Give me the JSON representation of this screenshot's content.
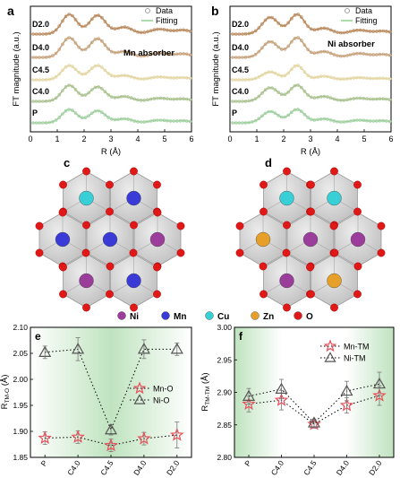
{
  "colors": {
    "D2.0": "#b98a5e",
    "D4.0": "#c6a27c",
    "C4.5": "#e3d6a3",
    "C4.0": "#a9c28f",
    "P": "#9fcf9f",
    "fit_line": "#8fd08f",
    "data_marker": "#8c8c8c",
    "Ni": "#9b3d9b",
    "Mn": "#3a3ad6",
    "Cu": "#38cfd6",
    "Zn": "#e6a02a",
    "O": "#e01818",
    "star": "#e8505b",
    "triangle": "#555555",
    "gradient": "#bfe3bf"
  },
  "chart_data": [
    {
      "id": "a",
      "type": "line",
      "panel_label": "a",
      "xlabel": "R (Å)",
      "ylabel": "FT magnitude (a.u.)",
      "xlim": [
        0,
        6
      ],
      "xticks": [
        "0",
        "1",
        "2",
        "3",
        "4",
        "5",
        "6"
      ],
      "annotation": "Mn absorber",
      "legend": [
        "Data",
        "Fitting"
      ],
      "legend_position": "top-right",
      "series": [
        {
          "name": "D2.0",
          "peaks": [
            {
              "r": 1.45,
              "a": 1.0,
              "w": 0.28
            },
            {
              "r": 2.5,
              "a": 0.95,
              "w": 0.3
            },
            {
              "r": 3.5,
              "a": 0.35,
              "w": 0.3
            },
            {
              "r": 4.8,
              "a": 0.25,
              "w": 0.35
            },
            {
              "r": 5.7,
              "a": 0.2,
              "w": 0.3
            }
          ]
        },
        {
          "name": "D4.0",
          "peaks": [
            {
              "r": 1.45,
              "a": 1.0,
              "w": 0.28
            },
            {
              "r": 2.5,
              "a": 0.95,
              "w": 0.3
            },
            {
              "r": 3.5,
              "a": 0.3,
              "w": 0.3
            },
            {
              "r": 4.8,
              "a": 0.22,
              "w": 0.35
            },
            {
              "r": 5.7,
              "a": 0.18,
              "w": 0.3
            }
          ]
        },
        {
          "name": "C4.5",
          "peaks": [
            {
              "r": 1.45,
              "a": 1.0,
              "w": 0.28
            },
            {
              "r": 2.5,
              "a": 1.0,
              "w": 0.3
            },
            {
              "r": 3.5,
              "a": 0.3,
              "w": 0.3
            },
            {
              "r": 4.8,
              "a": 0.2,
              "w": 0.35
            },
            {
              "r": 5.7,
              "a": 0.15,
              "w": 0.3
            }
          ]
        },
        {
          "name": "C4.0",
          "peaks": [
            {
              "r": 1.45,
              "a": 1.0,
              "w": 0.28
            },
            {
              "r": 2.5,
              "a": 0.9,
              "w": 0.3
            },
            {
              "r": 3.5,
              "a": 0.3,
              "w": 0.3
            },
            {
              "r": 4.8,
              "a": 0.2,
              "w": 0.35
            },
            {
              "r": 5.7,
              "a": 0.15,
              "w": 0.3
            }
          ]
        },
        {
          "name": "P",
          "peaks": [
            {
              "r": 1.45,
              "a": 1.0,
              "w": 0.28
            },
            {
              "r": 2.5,
              "a": 0.9,
              "w": 0.3
            },
            {
              "r": 3.5,
              "a": 0.3,
              "w": 0.3
            },
            {
              "r": 4.8,
              "a": 0.2,
              "w": 0.35
            },
            {
              "r": 5.7,
              "a": 0.15,
              "w": 0.3
            }
          ]
        }
      ]
    },
    {
      "id": "b",
      "type": "line",
      "panel_label": "b",
      "xlabel": "R (Å)",
      "ylabel": "FT magnitude (a.u.)",
      "xlim": [
        0,
        6
      ],
      "xticks": [
        "0",
        "1",
        "2",
        "3",
        "4",
        "5",
        "6"
      ],
      "annotation": "Ni absorber",
      "legend": [
        "Data",
        "Fitting"
      ],
      "legend_position": "top-right",
      "series": [
        {
          "name": "D2.0",
          "peaks": [
            {
              "r": 1.5,
              "a": 0.85,
              "w": 0.3
            },
            {
              "r": 2.5,
              "a": 1.0,
              "w": 0.28
            },
            {
              "r": 3.5,
              "a": 0.3,
              "w": 0.3
            },
            {
              "r": 4.8,
              "a": 0.2,
              "w": 0.35
            },
            {
              "r": 5.7,
              "a": 0.15,
              "w": 0.3
            }
          ]
        },
        {
          "name": "D4.0",
          "peaks": [
            {
              "r": 1.5,
              "a": 0.8,
              "w": 0.3
            },
            {
              "r": 2.5,
              "a": 1.0,
              "w": 0.28
            },
            {
              "r": 3.5,
              "a": 0.3,
              "w": 0.3
            },
            {
              "r": 4.8,
              "a": 0.2,
              "w": 0.35
            },
            {
              "r": 5.7,
              "a": 0.15,
              "w": 0.3
            }
          ]
        },
        {
          "name": "C4.5",
          "peaks": [
            {
              "r": 1.5,
              "a": 0.55,
              "w": 0.3
            },
            {
              "r": 2.5,
              "a": 1.0,
              "w": 0.25
            },
            {
              "r": 3.5,
              "a": 0.25,
              "w": 0.3
            },
            {
              "r": 4.8,
              "a": 0.15,
              "w": 0.35
            },
            {
              "r": 5.7,
              "a": 0.1,
              "w": 0.3
            }
          ]
        },
        {
          "name": "C4.0",
          "peaks": [
            {
              "r": 1.5,
              "a": 0.85,
              "w": 0.3
            },
            {
              "r": 2.5,
              "a": 1.0,
              "w": 0.28
            },
            {
              "r": 3.5,
              "a": 0.3,
              "w": 0.3
            },
            {
              "r": 4.8,
              "a": 0.2,
              "w": 0.35
            },
            {
              "r": 5.7,
              "a": 0.15,
              "w": 0.3
            }
          ]
        },
        {
          "name": "P",
          "peaks": [
            {
              "r": 1.5,
              "a": 0.85,
              "w": 0.3
            },
            {
              "r": 2.5,
              "a": 1.0,
              "w": 0.28
            },
            {
              "r": 3.5,
              "a": 0.3,
              "w": 0.3
            },
            {
              "r": 4.8,
              "a": 0.2,
              "w": 0.35
            },
            {
              "r": 5.7,
              "a": 0.15,
              "w": 0.3
            }
          ]
        }
      ]
    },
    {
      "id": "e",
      "type": "scatter",
      "panel_label": "e",
      "ylabel": "R",
      "ylabel_sub": "TM-O",
      "ylabel_unit": " (Å)",
      "categories": [
        "P",
        "C4.0",
        "C4.5",
        "D4.0",
        "D2.0"
      ],
      "ylim": [
        1.85,
        2.1
      ],
      "yticks": [
        "1.85",
        "1.90",
        "1.95",
        "2.00",
        "2.05",
        "2.10"
      ],
      "legend_position": "middle-right",
      "series": [
        {
          "name": "Mn-O",
          "marker": "star",
          "values": [
            1.887,
            1.889,
            1.873,
            1.886,
            1.893
          ],
          "errors": [
            0.012,
            0.012,
            0.012,
            0.012,
            0.025
          ]
        },
        {
          "name": "Ni-O",
          "marker": "triangle",
          "values": [
            2.052,
            2.058,
            1.903,
            2.058,
            2.058
          ],
          "errors": [
            0.012,
            0.022,
            0.01,
            0.018,
            0.012
          ]
        }
      ]
    },
    {
      "id": "f",
      "type": "scatter",
      "panel_label": "f",
      "ylabel": "R",
      "ylabel_sub": "TM-TM",
      "ylabel_unit": " (Å)",
      "categories": [
        "P",
        "C4.0",
        "C4.5",
        "D4.0",
        "D2.0"
      ],
      "ylim": [
        2.8,
        3.0
      ],
      "yticks": [
        "2.80",
        "2.85",
        "2.90",
        "2.95",
        "3.00"
      ],
      "legend_position": "top-right",
      "series": [
        {
          "name": "Mn-TM",
          "marker": "star",
          "values": [
            2.882,
            2.888,
            2.851,
            2.88,
            2.895
          ],
          "errors": [
            0.012,
            0.015,
            0.006,
            0.012,
            0.015
          ]
        },
        {
          "name": "Ni-TM",
          "marker": "triangle",
          "values": [
            2.894,
            2.905,
            2.853,
            2.902,
            2.913
          ],
          "errors": [
            0.012,
            0.015,
            0.006,
            0.015,
            0.018
          ]
        }
      ]
    }
  ],
  "structures": [
    {
      "panel_label": "c",
      "atoms": [
        "Cu",
        "Mn",
        "Mn",
        "Mn",
        "Ni",
        "Ni",
        "Mn"
      ]
    },
    {
      "panel_label": "d",
      "atoms": [
        "Cu",
        "Cu",
        "Zn",
        "Ni",
        "Ni",
        "Ni",
        "Zn"
      ]
    }
  ],
  "atom_legend": [
    {
      "name": "Ni",
      "element": "Ni"
    },
    {
      "name": "Mn",
      "element": "Mn"
    },
    {
      "name": "Cu",
      "element": "Cu"
    },
    {
      "name": "Zn",
      "element": "Zn"
    },
    {
      "name": "O",
      "element": "O"
    }
  ]
}
